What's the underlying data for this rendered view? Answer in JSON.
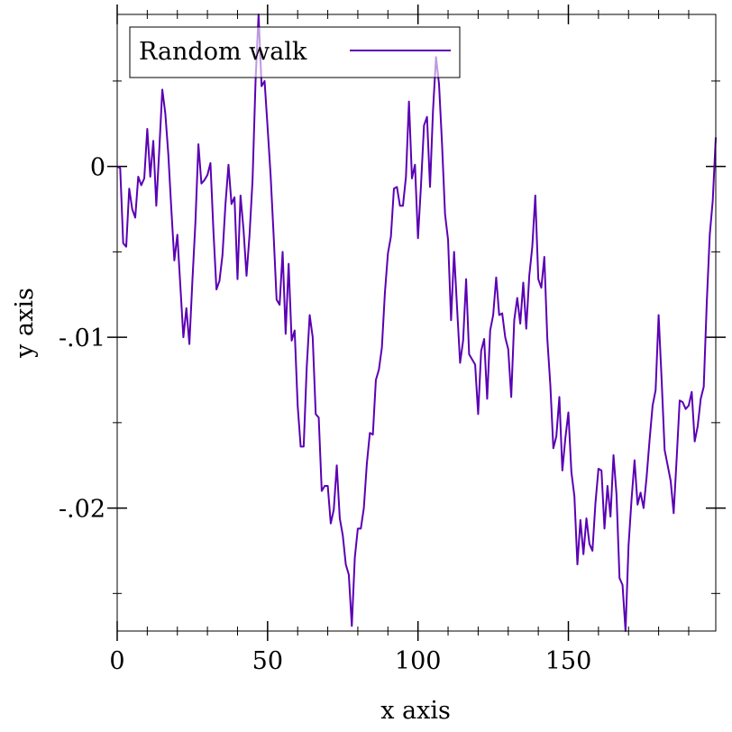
{
  "chart_data": {
    "type": "line",
    "xlabel": "x axis",
    "ylabel": "y axis",
    "xlim": [
      0,
      199
    ],
    "ylim": [
      -0.0272,
      0.0089
    ],
    "x_ticks": [
      0,
      50,
      100,
      150
    ],
    "x_tick_labels": [
      "0",
      "50",
      "100",
      "150"
    ],
    "y_ticks": [
      0,
      -0.01,
      -0.02
    ],
    "y_tick_labels": [
      "0",
      "-.01",
      "-.02"
    ],
    "x_minor_step": 10,
    "y_minor_step": 0.005,
    "grid": false,
    "legend_position": "top-left",
    "series": [
      {
        "name": "Random walk",
        "color": "#5a00b4",
        "x_start": 0,
        "x_step": 1,
        "values": [
          0,
          -0.0001,
          -0.0045,
          -0.0047,
          -0.0013,
          -0.0025,
          -0.003,
          -0.0006,
          -0.0011,
          -0.0007,
          0.0022,
          -0.0006,
          0.0015,
          -0.0023,
          0.001,
          0.0045,
          0.0031,
          0.0007,
          -0.0025,
          -0.0055,
          -0.004,
          -0.007,
          -0.01,
          -0.0083,
          -0.0104,
          -0.0067,
          -0.0033,
          0.0013,
          -0.001,
          -0.0008,
          -0.0005,
          0.0002,
          -0.0038,
          -0.0072,
          -0.0067,
          -0.0052,
          -0.0022,
          0.0001,
          -0.0022,
          -0.0018,
          -0.0066,
          -0.0017,
          -0.0037,
          -0.0064,
          -0.004,
          -0.0008,
          0.005,
          0.0089,
          0.0047,
          0.005,
          0.0023,
          -0.0005,
          -0.004,
          -0.0078,
          -0.0081,
          -0.005,
          -0.0098,
          -0.0057,
          -0.0102,
          -0.0096,
          -0.014,
          -0.0164,
          -0.0164,
          -0.0118,
          -0.0087,
          -0.01,
          -0.0145,
          -0.0147,
          -0.019,
          -0.0187,
          -0.0187,
          -0.0209,
          -0.0201,
          -0.0175,
          -0.0206,
          -0.0216,
          -0.0233,
          -0.0239,
          -0.0269,
          -0.0229,
          -0.0212,
          -0.0212,
          -0.02,
          -0.0174,
          -0.0156,
          -0.0157,
          -0.0125,
          -0.0119,
          -0.0106,
          -0.0074,
          -0.0051,
          -0.0041,
          -0.0013,
          -0.0012,
          -0.0023,
          -0.0023,
          -0.0006,
          0.0038,
          -0.0007,
          0.0001,
          -0.0042,
          -0.0011,
          0.0024,
          0.0029,
          -0.0012,
          0.0033,
          0.0064,
          0.0048,
          0.0013,
          -0.0028,
          -0.0043,
          -0.009,
          -0.005,
          -0.0083,
          -0.0115,
          -0.0102,
          -0.0066,
          -0.011,
          -0.0113,
          -0.0116,
          -0.0145,
          -0.0108,
          -0.0101,
          -0.0136,
          -0.0096,
          -0.0087,
          -0.0065,
          -0.0087,
          -0.0086,
          -0.01,
          -0.0107,
          -0.0135,
          -0.009,
          -0.0077,
          -0.0092,
          -0.0068,
          -0.0095,
          -0.0064,
          -0.0047,
          -0.0017,
          -0.0066,
          -0.0071,
          -0.0053,
          -0.0101,
          -0.0128,
          -0.0165,
          -0.0158,
          -0.0135,
          -0.0178,
          -0.0159,
          -0.0144,
          -0.0179,
          -0.0193,
          -0.0233,
          -0.0207,
          -0.0227,
          -0.0206,
          -0.0221,
          -0.0225,
          -0.0197,
          -0.0177,
          -0.0178,
          -0.0212,
          -0.0187,
          -0.0205,
          -0.0169,
          -0.0192,
          -0.0241,
          -0.0245,
          -0.0272,
          -0.0222,
          -0.0195,
          -0.0172,
          -0.0198,
          -0.0191,
          -0.02,
          -0.0182,
          -0.016,
          -0.014,
          -0.0131,
          -0.0087,
          -0.0125,
          -0.0166,
          -0.0175,
          -0.0184,
          -0.0203,
          -0.0171,
          -0.0137,
          -0.0138,
          -0.0142,
          -0.014,
          -0.0132,
          -0.0161,
          -0.0152,
          -0.0136,
          -0.0129,
          -0.008,
          -0.004,
          -0.002,
          0.0017
        ]
      }
    ]
  }
}
